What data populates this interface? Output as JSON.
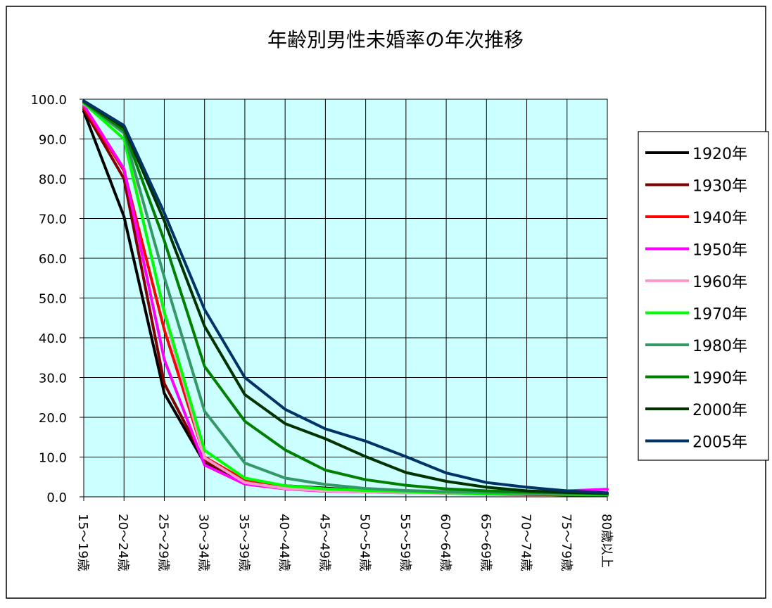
{
  "chart_data": {
    "type": "line",
    "title": "年齢別男性未婚率の年次推移",
    "xlabel": "",
    "ylabel": "",
    "ylim": [
      0,
      100
    ],
    "yticks": [
      "0.0",
      "10.0",
      "20.0",
      "30.0",
      "40.0",
      "50.0",
      "60.0",
      "70.0",
      "80.0",
      "90.0",
      "100.0"
    ],
    "grid": true,
    "legend_position": "right",
    "plot_background": "#ccffff",
    "categories": [
      "15～19歳",
      "20～24歳",
      "25～29歳",
      "30～34歳",
      "35～39歳",
      "40～44歳",
      "45～49歳",
      "50～54歳",
      "55～59歳",
      "60～64歳",
      "65～69歳",
      "70～74歳",
      "75～79歳",
      "80歳以上"
    ],
    "series": [
      {
        "name": "1920年",
        "color": "#000000",
        "values": [
          97.0,
          70.5,
          26.0,
          8.5,
          4.0,
          2.8,
          2.2,
          1.6,
          1.2,
          1.0,
          0.8,
          0.6,
          0.5,
          0.4
        ]
      },
      {
        "name": "1930年",
        "color": "#800000",
        "values": [
          97.5,
          80.0,
          28.5,
          9.0,
          4.0,
          2.6,
          2.0,
          1.5,
          1.1,
          0.9,
          0.7,
          0.6,
          0.5,
          0.4
        ]
      },
      {
        "name": "1940年",
        "color": "#ff0000",
        "values": [
          98.0,
          82.0,
          42.0,
          10.0,
          4.2,
          2.8,
          2.0,
          1.6,
          1.2,
          1.0,
          0.8,
          0.7,
          0.6,
          0.5
        ]
      },
      {
        "name": "1950年",
        "color": "#ff00ff",
        "values": [
          98.5,
          82.5,
          34.5,
          8.0,
          3.2,
          2.0,
          1.4,
          1.2,
          1.0,
          1.0,
          1.0,
          1.2,
          1.5,
          1.9
        ]
      },
      {
        "name": "1960年",
        "color": "#ff99cc",
        "values": [
          98.8,
          91.5,
          46.0,
          9.8,
          3.6,
          2.1,
          1.5,
          1.2,
          1.0,
          0.9,
          0.8,
          0.8,
          0.9,
          1.0
        ]
      },
      {
        "name": "1970年",
        "color": "#00ff00",
        "values": [
          99.0,
          90.0,
          46.5,
          11.7,
          4.7,
          2.8,
          2.0,
          1.6,
          1.3,
          1.0,
          0.8,
          0.7,
          0.6,
          0.5
        ]
      },
      {
        "name": "1980年",
        "color": "#339966",
        "values": [
          99.2,
          91.5,
          55.2,
          21.5,
          8.5,
          4.7,
          3.1,
          2.1,
          1.6,
          1.3,
          1.1,
          0.9,
          0.8,
          0.6
        ]
      },
      {
        "name": "1990年",
        "color": "#008000",
        "values": [
          99.3,
          92.2,
          64.4,
          32.8,
          19.0,
          11.8,
          6.7,
          4.3,
          2.9,
          2.0,
          1.5,
          1.2,
          1.0,
          0.8
        ]
      },
      {
        "name": "2000年",
        "color": "#003300",
        "values": [
          99.5,
          92.9,
          69.4,
          42.9,
          25.7,
          18.4,
          14.6,
          10.1,
          6.1,
          3.9,
          2.4,
          1.5,
          1.1,
          0.9
        ]
      },
      {
        "name": "2005年",
        "color": "#003366",
        "values": [
          99.6,
          93.4,
          71.4,
          47.1,
          30.0,
          22.0,
          17.1,
          14.0,
          10.1,
          6.0,
          3.6,
          2.4,
          1.5,
          1.0
        ]
      }
    ]
  }
}
